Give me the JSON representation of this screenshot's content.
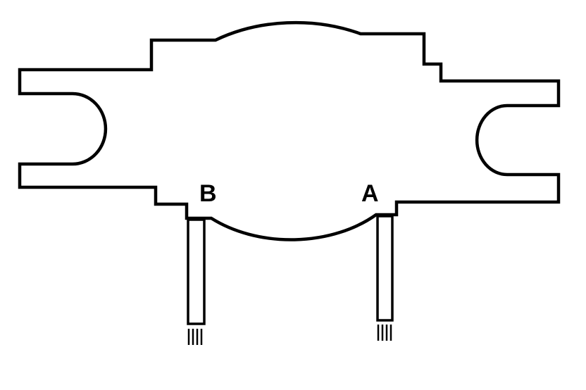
{
  "diagram": {
    "labels": {
      "terminal_b": "B",
      "terminal_a": "A"
    },
    "colors": {
      "stroke": "#000000",
      "background": "#ffffff"
    }
  }
}
